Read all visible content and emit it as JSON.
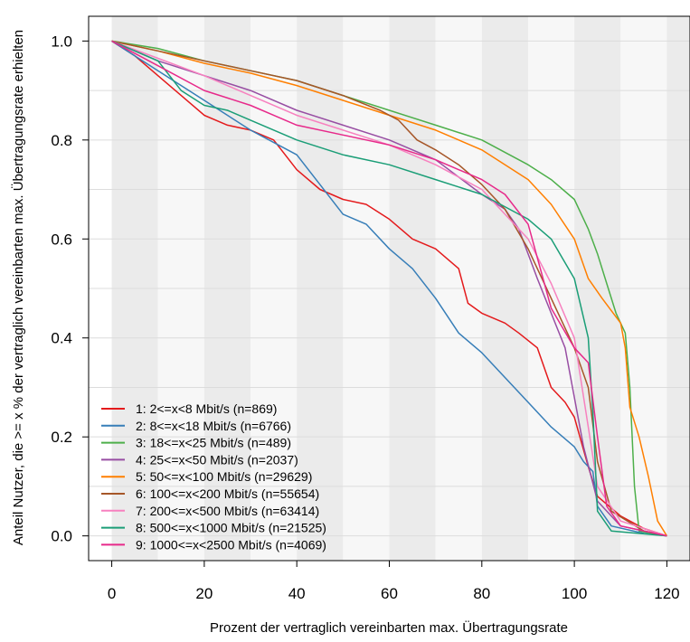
{
  "chart_data": {
    "type": "line",
    "title": "",
    "xlabel": "Prozent der vertraglich vereinbarten max. Übertragungsrate",
    "ylabel": "Anteil Nutzer, die >= x % der vertraglich vereinbarten max. Übertragungsrate erhielten",
    "xlim": [
      -5,
      125
    ],
    "ylim": [
      -0.05,
      1.05
    ],
    "x_ticks": [
      "0",
      "20",
      "40",
      "60",
      "80",
      "100",
      "120"
    ],
    "y_ticks": [
      "0.0",
      "0.2",
      "0.4",
      "0.6",
      "0.8",
      "1.0"
    ],
    "background_bands": {
      "step": 10,
      "colors": [
        "#ebebeb",
        "#f7f7f7"
      ]
    },
    "grid": true,
    "legend_position": "bottom-left",
    "series": [
      {
        "name": "1: 2<=x<8 Mbit/s (n=869)",
        "color": "#e41a1c",
        "points": [
          [
            0,
            1.0
          ],
          [
            5,
            0.97
          ],
          [
            10,
            0.93
          ],
          [
            15,
            0.89
          ],
          [
            20,
            0.85
          ],
          [
            25,
            0.83
          ],
          [
            30,
            0.82
          ],
          [
            35,
            0.8
          ],
          [
            40,
            0.74
          ],
          [
            45,
            0.7
          ],
          [
            50,
            0.68
          ],
          [
            55,
            0.67
          ],
          [
            60,
            0.64
          ],
          [
            65,
            0.6
          ],
          [
            70,
            0.58
          ],
          [
            75,
            0.54
          ],
          [
            77,
            0.47
          ],
          [
            80,
            0.45
          ],
          [
            85,
            0.43
          ],
          [
            88,
            0.41
          ],
          [
            92,
            0.38
          ],
          [
            95,
            0.3
          ],
          [
            98,
            0.27
          ],
          [
            100,
            0.24
          ],
          [
            103,
            0.14
          ],
          [
            105,
            0.08
          ],
          [
            110,
            0.04
          ],
          [
            115,
            0.015
          ],
          [
            120,
            0.0
          ]
        ]
      },
      {
        "name": "2: 8<=x<18 Mbit/s (n=6766)",
        "color": "#377eb8",
        "points": [
          [
            0,
            1.0
          ],
          [
            10,
            0.94
          ],
          [
            20,
            0.88
          ],
          [
            30,
            0.82
          ],
          [
            40,
            0.77
          ],
          [
            45,
            0.71
          ],
          [
            50,
            0.65
          ],
          [
            55,
            0.63
          ],
          [
            60,
            0.58
          ],
          [
            65,
            0.54
          ],
          [
            70,
            0.48
          ],
          [
            75,
            0.41
          ],
          [
            80,
            0.37
          ],
          [
            85,
            0.32
          ],
          [
            90,
            0.27
          ],
          [
            95,
            0.22
          ],
          [
            100,
            0.18
          ],
          [
            102,
            0.15
          ],
          [
            104,
            0.13
          ],
          [
            105,
            0.06
          ],
          [
            108,
            0.02
          ],
          [
            115,
            0.005
          ],
          [
            120,
            0.0
          ]
        ]
      },
      {
        "name": "3: 18<=x<25 Mbit/s (n=489)",
        "color": "#4daf4a",
        "points": [
          [
            0,
            1.0
          ],
          [
            10,
            0.985
          ],
          [
            20,
            0.96
          ],
          [
            30,
            0.94
          ],
          [
            40,
            0.92
          ],
          [
            50,
            0.89
          ],
          [
            60,
            0.86
          ],
          [
            70,
            0.83
          ],
          [
            80,
            0.8
          ],
          [
            90,
            0.75
          ],
          [
            95,
            0.72
          ],
          [
            100,
            0.68
          ],
          [
            103,
            0.62
          ],
          [
            105,
            0.57
          ],
          [
            107,
            0.51
          ],
          [
            109,
            0.45
          ],
          [
            111,
            0.41
          ],
          [
            112,
            0.3
          ],
          [
            113,
            0.1
          ],
          [
            114,
            0.01
          ],
          [
            120,
            0.0
          ]
        ]
      },
      {
        "name": "4: 25<=x<50 Mbit/s (n=2037)",
        "color": "#984ea3",
        "points": [
          [
            0,
            1.0
          ],
          [
            10,
            0.96
          ],
          [
            20,
            0.93
          ],
          [
            30,
            0.9
          ],
          [
            40,
            0.86
          ],
          [
            50,
            0.83
          ],
          [
            60,
            0.8
          ],
          [
            70,
            0.76
          ],
          [
            80,
            0.69
          ],
          [
            85,
            0.66
          ],
          [
            88,
            0.62
          ],
          [
            92,
            0.52
          ],
          [
            95,
            0.45
          ],
          [
            98,
            0.38
          ],
          [
            100,
            0.28
          ],
          [
            102,
            0.18
          ],
          [
            105,
            0.07
          ],
          [
            110,
            0.02
          ],
          [
            120,
            0.0
          ]
        ]
      },
      {
        "name": "5: 50<=x<100 Mbit/s (n=29629)",
        "color": "#ff7f00",
        "points": [
          [
            0,
            1.0
          ],
          [
            10,
            0.98
          ],
          [
            20,
            0.955
          ],
          [
            30,
            0.935
          ],
          [
            40,
            0.91
          ],
          [
            50,
            0.88
          ],
          [
            60,
            0.85
          ],
          [
            70,
            0.82
          ],
          [
            80,
            0.78
          ],
          [
            90,
            0.72
          ],
          [
            95,
            0.67
          ],
          [
            100,
            0.6
          ],
          [
            103,
            0.52
          ],
          [
            106,
            0.48
          ],
          [
            110,
            0.43
          ],
          [
            111,
            0.38
          ],
          [
            112,
            0.26
          ],
          [
            114,
            0.2
          ],
          [
            116,
            0.12
          ],
          [
            118,
            0.03
          ],
          [
            120,
            0.0
          ]
        ]
      },
      {
        "name": "6: 100<=x<200 Mbit/s (n=55654)",
        "color": "#a65628",
        "points": [
          [
            0,
            1.0
          ],
          [
            10,
            0.98
          ],
          [
            20,
            0.96
          ],
          [
            30,
            0.94
          ],
          [
            40,
            0.92
          ],
          [
            50,
            0.89
          ],
          [
            58,
            0.86
          ],
          [
            62,
            0.84
          ],
          [
            66,
            0.8
          ],
          [
            70,
            0.78
          ],
          [
            75,
            0.75
          ],
          [
            80,
            0.71
          ],
          [
            85,
            0.66
          ],
          [
            90,
            0.58
          ],
          [
            95,
            0.48
          ],
          [
            100,
            0.38
          ],
          [
            103,
            0.3
          ],
          [
            105,
            0.15
          ],
          [
            108,
            0.05
          ],
          [
            115,
            0.01
          ],
          [
            120,
            0.0
          ]
        ]
      },
      {
        "name": "7: 200<=x<500 Mbit/s (n=63414)",
        "color": "#f781bf",
        "points": [
          [
            0,
            1.0
          ],
          [
            10,
            0.965
          ],
          [
            20,
            0.93
          ],
          [
            30,
            0.89
          ],
          [
            40,
            0.85
          ],
          [
            50,
            0.82
          ],
          [
            60,
            0.79
          ],
          [
            70,
            0.75
          ],
          [
            80,
            0.7
          ],
          [
            90,
            0.6
          ],
          [
            95,
            0.51
          ],
          [
            100,
            0.4
          ],
          [
            103,
            0.22
          ],
          [
            105,
            0.1
          ],
          [
            110,
            0.03
          ],
          [
            120,
            0.0
          ]
        ]
      },
      {
        "name": "8: 500<=x<1000 Mbit/s (n=21525)",
        "color": "#1b9e77",
        "points": [
          [
            0,
            1.0
          ],
          [
            10,
            0.96
          ],
          [
            15,
            0.9
          ],
          [
            20,
            0.87
          ],
          [
            25,
            0.86
          ],
          [
            30,
            0.84
          ],
          [
            40,
            0.8
          ],
          [
            50,
            0.77
          ],
          [
            60,
            0.75
          ],
          [
            70,
            0.72
          ],
          [
            80,
            0.69
          ],
          [
            90,
            0.64
          ],
          [
            95,
            0.6
          ],
          [
            100,
            0.52
          ],
          [
            103,
            0.4
          ],
          [
            104,
            0.25
          ],
          [
            105,
            0.05
          ],
          [
            108,
            0.01
          ],
          [
            120,
            0.0
          ]
        ]
      },
      {
        "name": "9: 1000<=x<2500 Mbit/s (n=4069)",
        "color": "#e7298a",
        "points": [
          [
            0,
            1.0
          ],
          [
            10,
            0.95
          ],
          [
            20,
            0.9
          ],
          [
            30,
            0.87
          ],
          [
            40,
            0.83
          ],
          [
            50,
            0.81
          ],
          [
            60,
            0.79
          ],
          [
            70,
            0.76
          ],
          [
            80,
            0.72
          ],
          [
            85,
            0.69
          ],
          [
            90,
            0.63
          ],
          [
            95,
            0.46
          ],
          [
            100,
            0.38
          ],
          [
            103,
            0.35
          ],
          [
            105,
            0.2
          ],
          [
            107,
            0.06
          ],
          [
            110,
            0.02
          ],
          [
            120,
            0.0
          ]
        ]
      }
    ]
  }
}
